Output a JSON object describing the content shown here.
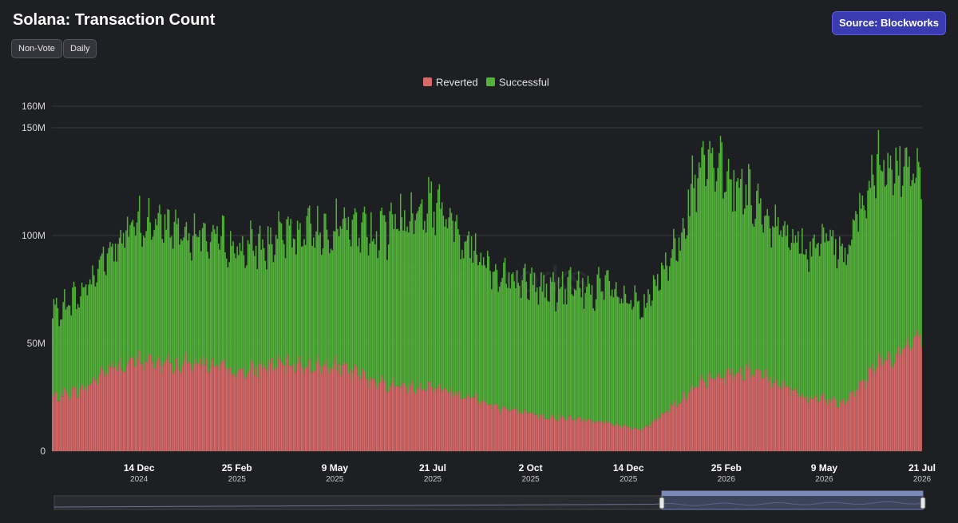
{
  "header": {
    "title": "Solana: Transaction Count",
    "filters": [
      "Non-Vote",
      "Daily"
    ],
    "source_button": "Source: Blockworks"
  },
  "watermark": "Blockworks",
  "colors": {
    "background": "#1e1f22",
    "reverted": "#d96a6a",
    "successful": "#52b23a",
    "grid": "#3a3b40",
    "source_button": "#3a3bb0",
    "navigator_selection": "#4a5a80"
  },
  "chart_data": {
    "type": "bar",
    "stacked": true,
    "title": "Solana: Transaction Count",
    "ylim": [
      0,
      160000000
    ],
    "y_ticks": [
      {
        "value": 0,
        "label": "0"
      },
      {
        "value": 50000000,
        "label": "50M"
      },
      {
        "value": 100000000,
        "label": "100M"
      },
      {
        "value": 150000000,
        "label": "150M"
      },
      {
        "value": 160000000,
        "label": "160M"
      }
    ],
    "x_range": [
      "2024-10-10",
      "2026-07-21"
    ],
    "x_ticks": [
      {
        "date": "2024-12-14",
        "label": "14 Dec",
        "year": "2024"
      },
      {
        "date": "2025-02-25",
        "label": "25 Feb",
        "year": "2025"
      },
      {
        "date": "2025-05-09",
        "label": "9 May",
        "year": "2025"
      },
      {
        "date": "2025-07-21",
        "label": "21 Jul",
        "year": "2025"
      },
      {
        "date": "2025-10-02",
        "label": "2 Oct",
        "year": "2025"
      },
      {
        "date": "2025-12-14",
        "label": "14 Dec",
        "year": "2025"
      },
      {
        "date": "2026-02-25",
        "label": "25 Feb",
        "year": "2026"
      },
      {
        "date": "2026-05-09",
        "label": "9 May",
        "year": "2026"
      },
      {
        "date": "2026-07-21",
        "label": "21 Jul",
        "year": "2026"
      }
    ],
    "legend": {
      "position": "top-center",
      "entries": [
        "Reverted",
        "Successful"
      ]
    },
    "grid": true,
    "series": [
      {
        "name": "Reverted",
        "points": [
          [
            "2024-10-10",
            25000000
          ],
          [
            "2024-11-01",
            28000000
          ],
          [
            "2024-11-20",
            38000000
          ],
          [
            "2024-12-14",
            42000000
          ],
          [
            "2025-01-10",
            40000000
          ],
          [
            "2025-01-25",
            42000000
          ],
          [
            "2025-02-25",
            36000000
          ],
          [
            "2025-03-20",
            40000000
          ],
          [
            "2025-04-15",
            40000000
          ],
          [
            "2025-05-09",
            40000000
          ],
          [
            "2025-06-10",
            32000000
          ],
          [
            "2025-07-01",
            30000000
          ],
          [
            "2025-07-21",
            30000000
          ],
          [
            "2025-08-20",
            25000000
          ],
          [
            "2025-09-10",
            20000000
          ],
          [
            "2025-10-02",
            17000000
          ],
          [
            "2025-11-01",
            15000000
          ],
          [
            "2025-11-25",
            14000000
          ],
          [
            "2025-12-14",
            11000000
          ],
          [
            "2025-12-25",
            10000000
          ],
          [
            "2026-01-10",
            18000000
          ],
          [
            "2026-01-30",
            28000000
          ],
          [
            "2026-02-10",
            33000000
          ],
          [
            "2026-02-25",
            35000000
          ],
          [
            "2026-03-15",
            38000000
          ],
          [
            "2026-04-05",
            32000000
          ],
          [
            "2026-04-25",
            25000000
          ],
          [
            "2026-05-09",
            25000000
          ],
          [
            "2026-05-25",
            22000000
          ],
          [
            "2026-06-05",
            30000000
          ],
          [
            "2026-06-20",
            42000000
          ],
          [
            "2026-07-05",
            45000000
          ],
          [
            "2026-07-21",
            55000000
          ]
        ]
      },
      {
        "name": "Successful",
        "points": [
          [
            "2024-10-10",
            38000000
          ],
          [
            "2024-11-01",
            45000000
          ],
          [
            "2024-11-20",
            55000000
          ],
          [
            "2024-12-14",
            63000000
          ],
          [
            "2025-01-10",
            65000000
          ],
          [
            "2025-01-25",
            60000000
          ],
          [
            "2025-02-25",
            58000000
          ],
          [
            "2025-03-20",
            56000000
          ],
          [
            "2025-04-15",
            62000000
          ],
          [
            "2025-05-09",
            65000000
          ],
          [
            "2025-06-10",
            70000000
          ],
          [
            "2025-07-01",
            78000000
          ],
          [
            "2025-07-21",
            85000000
          ],
          [
            "2025-08-20",
            70000000
          ],
          [
            "2025-09-10",
            62000000
          ],
          [
            "2025-10-02",
            60000000
          ],
          [
            "2025-11-01",
            60000000
          ],
          [
            "2025-11-25",
            62000000
          ],
          [
            "2025-12-14",
            58000000
          ],
          [
            "2025-12-25",
            55000000
          ],
          [
            "2026-01-10",
            65000000
          ],
          [
            "2026-01-30",
            90000000
          ],
          [
            "2026-02-10",
            100000000
          ],
          [
            "2026-02-25",
            95000000
          ],
          [
            "2026-03-15",
            80000000
          ],
          [
            "2026-04-05",
            72000000
          ],
          [
            "2026-04-25",
            70000000
          ],
          [
            "2026-05-09",
            72000000
          ],
          [
            "2026-05-25",
            70000000
          ],
          [
            "2026-06-05",
            80000000
          ],
          [
            "2026-06-20",
            90000000
          ],
          [
            "2026-07-05",
            85000000
          ],
          [
            "2026-07-21",
            75000000
          ]
        ]
      }
    ]
  }
}
